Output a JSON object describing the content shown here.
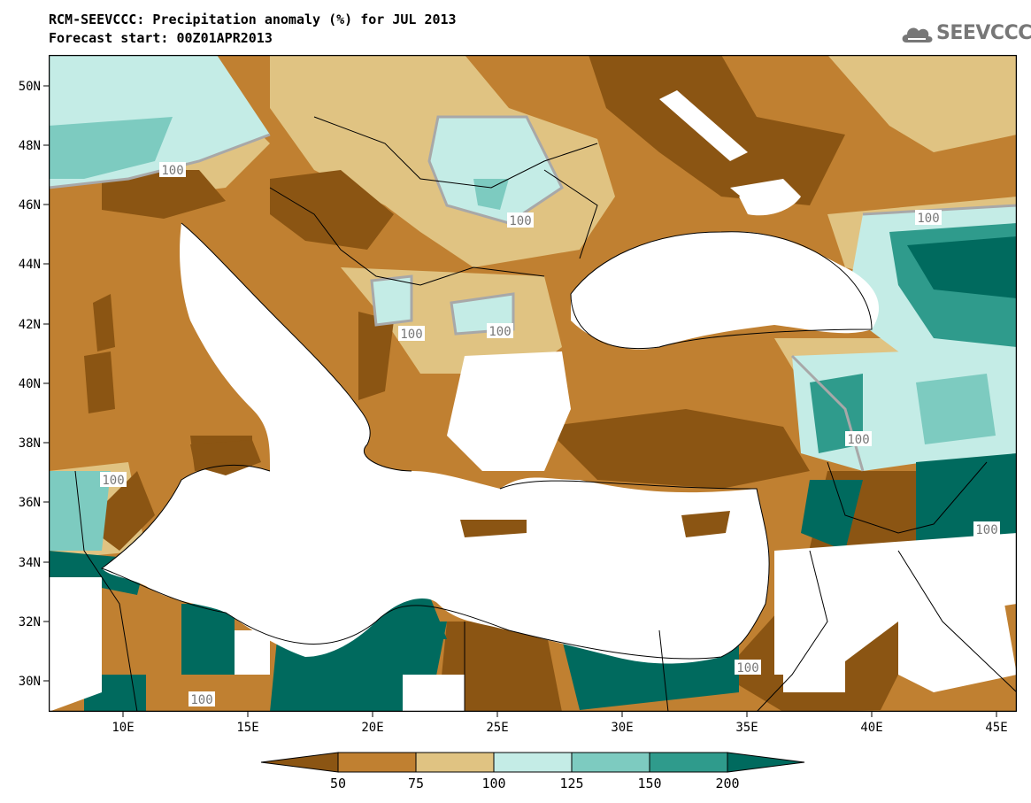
{
  "header": {
    "title_line1": "RCM-SEEVCCC: Precipitation anomaly (%) for JUL 2013",
    "title_line2": "Forecast start: 00Z01APR2013"
  },
  "logo": {
    "text": "SEEVCCC",
    "icon": "cloud-icon"
  },
  "axes": {
    "lat_labels": [
      "50N",
      "48N",
      "46N",
      "44N",
      "42N",
      "40N",
      "38N",
      "36N",
      "34N",
      "32N",
      "30N"
    ],
    "lon_labels": [
      "10E",
      "15E",
      "20E",
      "25E",
      "30E",
      "35E",
      "40E",
      "45E"
    ]
  },
  "contour_labels": [
    "100",
    "100",
    "100",
    "100",
    "100",
    "100",
    "100",
    "100",
    "100",
    "100"
  ],
  "colorbar": {
    "ticks": [
      "50",
      "75",
      "100",
      "125",
      "150",
      "200"
    ],
    "colors": [
      "#8b5513",
      "#c08031",
      "#e0c382",
      "#c4ece6",
      "#7dcbc0",
      "#2f9b8c",
      "#006a5e"
    ]
  },
  "palette": {
    "ocean": "#ffffff",
    "border": "#000000",
    "contour_100": "#a8a8a8"
  }
}
